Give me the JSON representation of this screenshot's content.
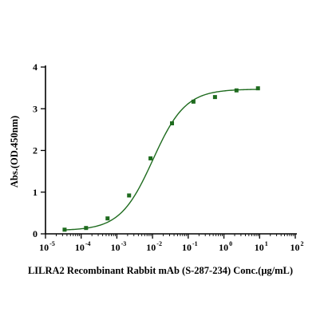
{
  "chart_data": {
    "type": "scatter",
    "title": "",
    "xlabel": "LILRA2 Recombinant Rabbit mAb (S-287-234)  Conc.(μg/mL)",
    "ylabel": "Abs.(OD.450nm)",
    "x_scale": "log",
    "xlim": [
      1e-05,
      100
    ],
    "ylim": [
      0,
      4
    ],
    "x_ticks": [
      {
        "base": "10",
        "exp": "-5"
      },
      {
        "base": "10",
        "exp": "-4"
      },
      {
        "base": "10",
        "exp": "-3"
      },
      {
        "base": "10",
        "exp": "-2"
      },
      {
        "base": "10",
        "exp": "-1"
      },
      {
        "base": "10",
        "exp": "0"
      },
      {
        "base": "10",
        "exp": "1"
      },
      {
        "base": "10",
        "exp": "2"
      }
    ],
    "y_ticks": [
      "0",
      "1",
      "2",
      "3",
      "4"
    ],
    "grid": false,
    "legend": "none",
    "series": [
      {
        "x": [
          3.43e-05,
          0.000137,
          0.000549,
          0.0022,
          0.00878,
          0.0351,
          0.14,
          0.562,
          2.25,
          9.0
        ],
        "y": [
          0.1,
          0.14,
          0.37,
          0.92,
          1.81,
          2.65,
          3.17,
          3.28,
          3.44,
          3.49
        ],
        "color": "#1e6b1e",
        "marker": "square",
        "fit": "4PL"
      }
    ],
    "fit_curve": {
      "bottom": 0.08,
      "top": 3.47,
      "ec50": 0.0102,
      "hill": 0.95
    }
  }
}
